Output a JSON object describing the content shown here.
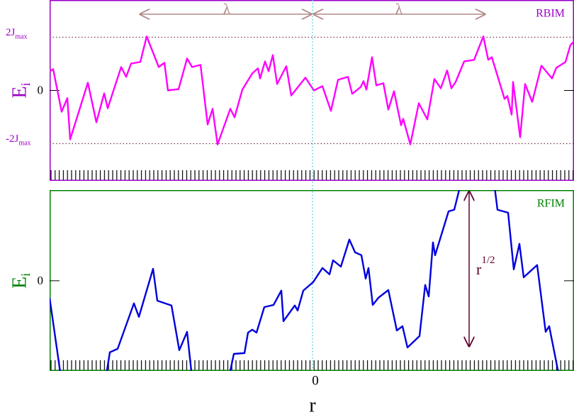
{
  "chart_data": [
    {
      "type": "line",
      "panel_label": "RBIM",
      "ylabel": "E",
      "ylabel_sub": "i",
      "annotations": [
        "λ",
        "λ"
      ],
      "axis_color": "#9b00c8",
      "xlim": [
        -371,
        369
      ],
      "ylim": [
        -3.4,
        3.4
      ],
      "yticks": [
        {
          "value": -2,
          "label": "-2J",
          "sub": "max"
        },
        0,
        {
          "value": 2,
          "label": "2J",
          "sub": "max"
        }
      ],
      "x": [
        -371,
        -366,
        -354,
        -346,
        -342,
        -317,
        -305,
        -294,
        -289,
        -270,
        -263,
        -256,
        -243,
        -234,
        -217,
        -209,
        -204,
        -189,
        -177,
        -170,
        -158,
        -148,
        -141,
        -134,
        -116,
        -110,
        -99,
        -85,
        -77,
        -74,
        -67,
        -62,
        -56,
        -50,
        -37,
        -30,
        -10,
        2,
        14,
        26,
        36,
        50,
        56,
        68,
        72,
        76,
        84,
        90,
        100,
        107,
        115,
        125,
        128,
        138,
        150,
        162,
        172,
        181,
        190,
        196,
        202,
        214,
        228,
        241,
        248,
        253,
        271,
        275,
        281,
        283,
        293,
        300,
        310,
        323,
        338,
        344,
        357,
        364,
        369
      ],
      "series": [
        {
          "color": "#ff00ff",
          "values": [
            0.72,
            0.8,
            -0.8,
            -0.29,
            -1.84,
            0.29,
            -1.2,
            -0.11,
            -0.67,
            0.88,
            0.51,
            1.01,
            1.07,
            2.03,
            0.88,
            1.04,
            0,
            0.05,
            1.2,
            0.88,
            0.96,
            -1.28,
            -0.69,
            -2.03,
            -0.69,
            -1.01,
            0.03,
            0.64,
            0.83,
            0.45,
            1.09,
            0.72,
            1.33,
            0.24,
            0.91,
            -0.19,
            0.48,
            0,
            0.16,
            -0.77,
            0.4,
            0.51,
            -0.13,
            0.13,
            0.35,
            0.03,
            1.25,
            0.19,
            0.27,
            -0.72,
            -0.03,
            -1.31,
            -1.07,
            -2.03,
            -0.48,
            -1.09,
            0.43,
            0.08,
            0.75,
            0.08,
            0.32,
            1.09,
            1.15,
            2.03,
            1.15,
            1.25,
            -0.32,
            -0.21,
            -0.91,
            0.32,
            -1.76,
            0.24,
            -0.43,
            0.93,
            0.45,
            0.85,
            1.07,
            1.71,
            1.84
          ]
        }
      ]
    },
    {
      "type": "line",
      "panel_label": "RFIM",
      "ylabel": "E",
      "ylabel_sub": "i",
      "annotations": [
        {
          "label": "r",
          "sup": "1/2"
        }
      ],
      "axis_color": "#008000",
      "xlabel": "r",
      "grid": true,
      "xlim": [
        -371,
        369
      ],
      "ylim": [
        -3.39,
        3.41
      ],
      "xticks": [
        0
      ],
      "yticks": [
        0
      ],
      "x": [
        -371,
        -351,
        -296,
        -286,
        -275,
        -252,
        -245,
        -225,
        -219,
        -199,
        -188,
        -177,
        -166,
        -126,
        -111,
        -96,
        -91,
        -85,
        -79,
        -68,
        -55,
        -44,
        -41,
        -25,
        -21,
        -13,
        1,
        14,
        24,
        29,
        40,
        52,
        60,
        69,
        75,
        79,
        85,
        93,
        107,
        119,
        127,
        134,
        151,
        159,
        164,
        170,
        173,
        192,
        200,
        214,
        254,
        261,
        276,
        284,
        292,
        298,
        317,
        329,
        334,
        354
      ],
      "series": [
        {
          "color": "#0000dd",
          "values": [
            -0.64,
            -4.37,
            -4.37,
            -2.69,
            -2.56,
            -0.85,
            -1.36,
            0.45,
            -0.75,
            -0.93,
            -2.61,
            -1.92,
            -4.64,
            -4.64,
            -2.75,
            -2.72,
            -1.95,
            -1.84,
            -1.95,
            -0.99,
            -0.91,
            -0.37,
            -1.52,
            -0.93,
            -1.12,
            -0.37,
            -0.05,
            0.48,
            0.24,
            0.77,
            0.53,
            1.55,
            1.07,
            0.96,
            0.08,
            0.48,
            -0.91,
            -0.64,
            -0.35,
            -1.87,
            -1.71,
            -2.51,
            -2.08,
            -0.16,
            -0.59,
            1.44,
            0.96,
            2.61,
            2.67,
            4.16,
            4.16,
            2.67,
            2.56,
            0.43,
            1.39,
            0.13,
            0.59,
            -1.92,
            -1.71,
            -4.4
          ]
        }
      ]
    }
  ]
}
